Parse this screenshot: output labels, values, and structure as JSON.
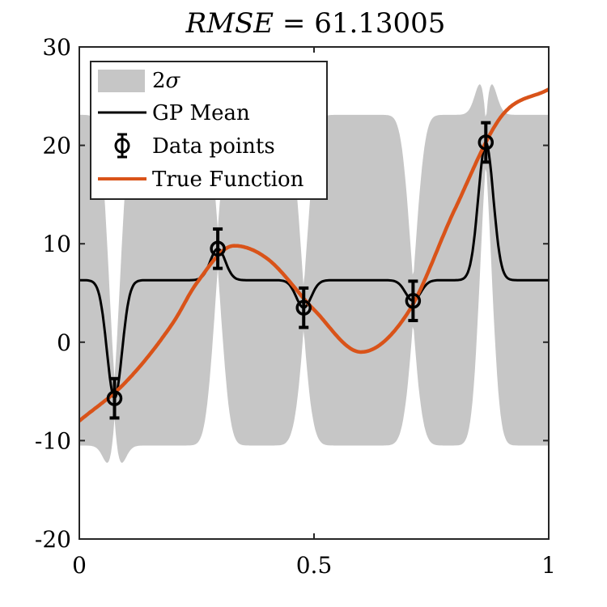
{
  "chart_data": {
    "type": "line",
    "title": "RMSE = 61.13005",
    "title_parts": {
      "lhs": "RMSE",
      "eq": " = ",
      "rhs": "61.13005"
    },
    "xlabel": "",
    "ylabel": "",
    "xlim": [
      0,
      1
    ],
    "ylim": [
      -20,
      30
    ],
    "xticks": [
      0,
      0.5,
      1
    ],
    "xtick_labels": [
      "0",
      "0.5",
      "1"
    ],
    "yticks": [
      -20,
      -10,
      0,
      10,
      20,
      30
    ],
    "ytick_labels": [
      "-20",
      "-10",
      "0",
      "10",
      "20",
      "30"
    ],
    "grid": false,
    "legend_position": "top-left",
    "legend": [
      {
        "label": "2σ",
        "label_main": "2",
        "label_greek": "σ",
        "kind": "band"
      },
      {
        "label": "GP Mean",
        "kind": "line"
      },
      {
        "label": "Data points",
        "kind": "errorbar"
      },
      {
        "label": "True Function",
        "kind": "line"
      }
    ],
    "colors": {
      "band": "#c6c6c6",
      "gp_mean": "#000000",
      "data": "#000000",
      "true_function": "#d95319"
    },
    "data_points": {
      "x": [
        0.075,
        0.295,
        0.478,
        0.711,
        0.866
      ],
      "y": [
        -5.7,
        9.5,
        3.5,
        4.2,
        20.3
      ],
      "error": [
        2.0,
        2.0,
        2.0,
        2.0,
        2.0
      ]
    },
    "gp": {
      "prior_mean": 6.3,
      "prior_halfwidth": 16.8,
      "lengthscale": 0.016,
      "noise_halfwidth": 2.0
    },
    "true_function": {
      "x_samples": [
        0,
        0.1,
        0.2,
        0.25,
        0.33,
        0.4,
        0.5,
        0.6,
        0.7,
        0.8,
        0.9,
        1.0
      ],
      "y_samples": [
        -8.0,
        -4.0,
        2.0,
        6.0,
        9.8,
        8.5,
        3.3,
        -1.0,
        3.0,
        13.5,
        23.0,
        25.7
      ]
    }
  }
}
